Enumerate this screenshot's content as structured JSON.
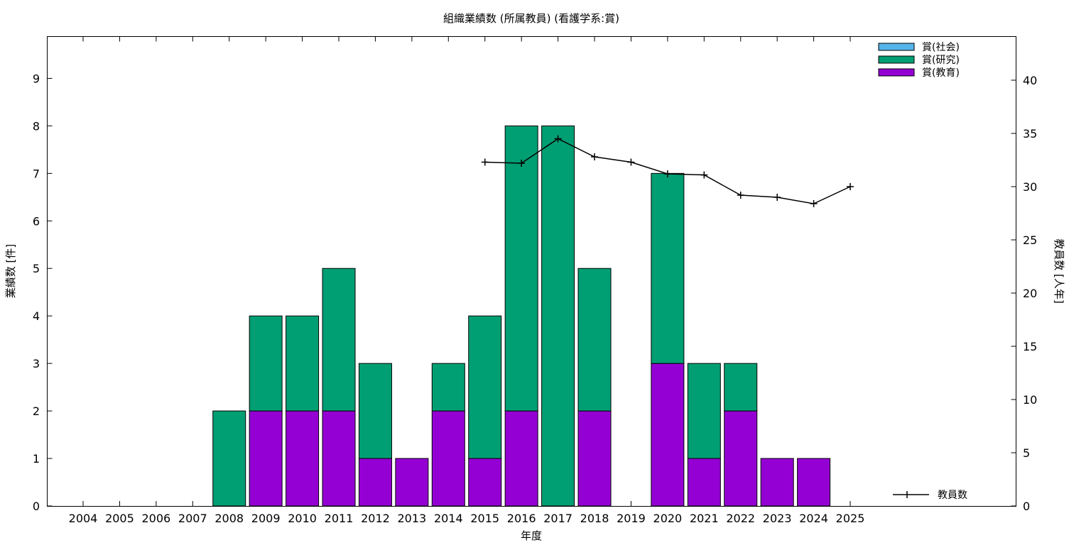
{
  "chart_data": {
    "type": "bar",
    "title": "組織業績数 (所属教員) (看護学系:賞)",
    "xlabel": "年度",
    "ylabel": "業績数 [件]",
    "y2label": "教員数 [人年]",
    "ylim": [
      0,
      9.88
    ],
    "y2lim": [
      0,
      44.1
    ],
    "yticks": [
      0,
      1,
      2,
      3,
      4,
      5,
      6,
      7,
      8,
      9
    ],
    "y2ticks": [
      0,
      5,
      10,
      15,
      20,
      25,
      30,
      35,
      40
    ],
    "stacked": true,
    "legend_position": "top-right",
    "categories": [
      "2004",
      "2005",
      "2006",
      "2007",
      "2008",
      "2009",
      "2010",
      "2011",
      "2012",
      "2013",
      "2014",
      "2015",
      "2016",
      "2017",
      "2018",
      "2019",
      "2020",
      "2021",
      "2022",
      "2023",
      "2024",
      "2025"
    ],
    "series": [
      {
        "name": "賞(教育)",
        "color": "#9400d3",
        "values": [
          0,
          0,
          0,
          0,
          0,
          2,
          2,
          2,
          1,
          1,
          2,
          1,
          2,
          0,
          2,
          0,
          3,
          1,
          2,
          1,
          1,
          0
        ]
      },
      {
        "name": "賞(研究)",
        "color": "#009e73",
        "values": [
          0,
          0,
          0,
          0,
          2,
          2,
          2,
          3,
          2,
          0,
          1,
          3,
          6,
          8,
          3,
          0,
          4,
          2,
          1,
          0,
          0,
          0
        ]
      },
      {
        "name": "賞(社会)",
        "color": "#56b4e9",
        "values": [
          0,
          0,
          0,
          0,
          0,
          0,
          0,
          0,
          0,
          0,
          0,
          0,
          0,
          0,
          0,
          0,
          0,
          0,
          0,
          0,
          0,
          0
        ]
      }
    ],
    "line_series": {
      "name": "教員数",
      "color": "#000000",
      "axis": "right",
      "x": [
        "2015",
        "2016",
        "2017",
        "2018",
        "2019",
        "2020",
        "2021",
        "2022",
        "2023",
        "2024",
        "2025"
      ],
      "values": [
        32.3,
        32.2,
        34.5,
        32.8,
        32.3,
        31.2,
        31.1,
        29.2,
        29.0,
        28.4,
        30.0
      ]
    },
    "legend_order": [
      "賞(社会)",
      "賞(研究)",
      "賞(教育)"
    ],
    "line_legend_position": "bottom-right"
  }
}
